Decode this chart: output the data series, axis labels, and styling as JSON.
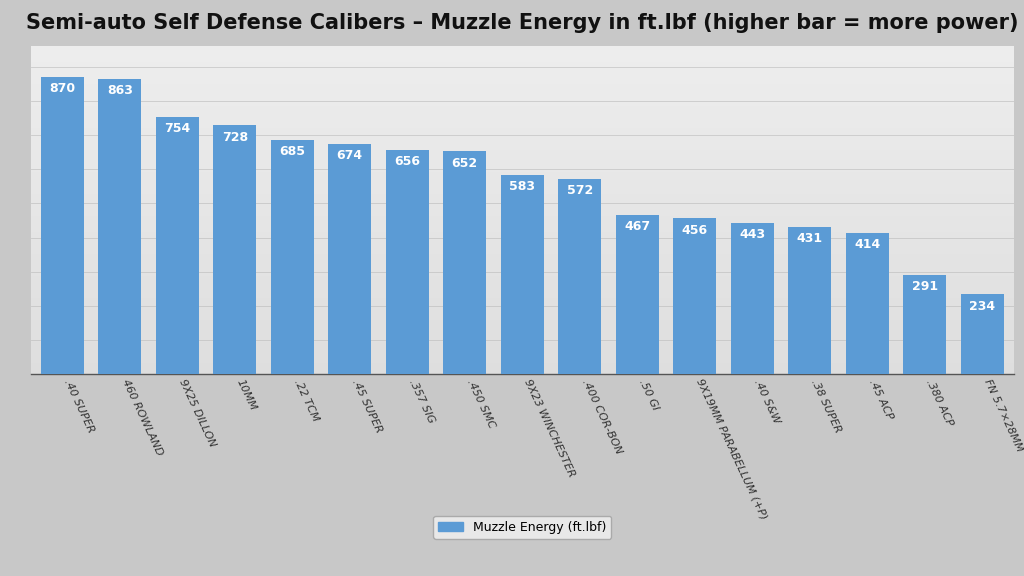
{
  "title": "Semi-auto Self Defense Calibers – Muzzle Energy in ft.lbf (higher bar = more power)",
  "categories": [
    ".40 SUPER",
    "460 ROWLAND",
    "9X25 DILLON",
    "10MM",
    ".22 TCM",
    ".45 SUPER",
    ".357 SIG",
    ".450 SMC",
    "9X23 WINCHESTER",
    ".400 COR-BON",
    ".50 GI",
    "9X19MM PARABELLUM (+P)",
    ".40 S&W",
    ".38 SUPER",
    ".45 ACP",
    ".380 ACP",
    "FN 5.7×28MM"
  ],
  "values": [
    870,
    863,
    754,
    728,
    685,
    674,
    656,
    652,
    583,
    572,
    467,
    456,
    443,
    431,
    414,
    291,
    234
  ],
  "bar_color": "#5B9BD5",
  "background_color": "#C8C8C8",
  "label_color": "#FFFFFF",
  "legend_label": "Muzzle Energy (ft.lbf)",
  "title_fontsize": 15,
  "label_fontsize": 9,
  "tick_fontsize": 8,
  "ylim": [
    0,
    960
  ],
  "grid_color": "#BBBBBB",
  "axis_line_color": "#555555"
}
